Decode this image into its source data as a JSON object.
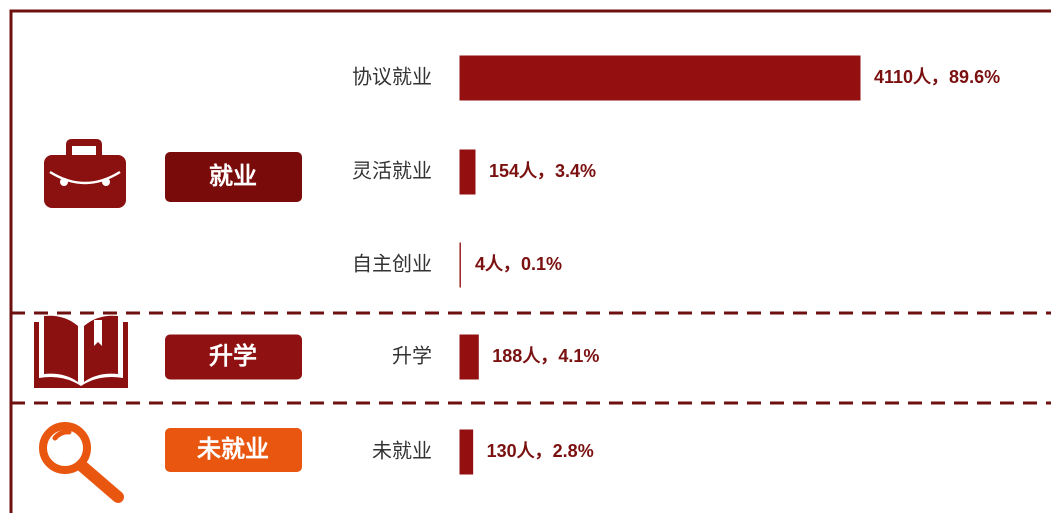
{
  "chart_data": {
    "type": "bar",
    "color": "#930f10",
    "groups": [
      {
        "name": "就业",
        "color": "#7a0b0b",
        "categories": [
          "协议就业",
          "灵活就业",
          "自主创业"
        ],
        "values": [
          4110,
          154,
          4
        ],
        "value_labels": [
          "4110人，89.6%",
          "154人，3.4%",
          "4人，0.1%"
        ]
      },
      {
        "name": "升学",
        "color": "#8f1111",
        "categories": [
          "升学"
        ],
        "values": [
          188
        ],
        "value_labels": [
          "188人，4.1%"
        ]
      },
      {
        "name": "未就业",
        "color": "#e8560f",
        "categories": [
          "未就业"
        ],
        "values": [
          130
        ],
        "value_labels": [
          "130人，2.8%"
        ]
      }
    ]
  }
}
